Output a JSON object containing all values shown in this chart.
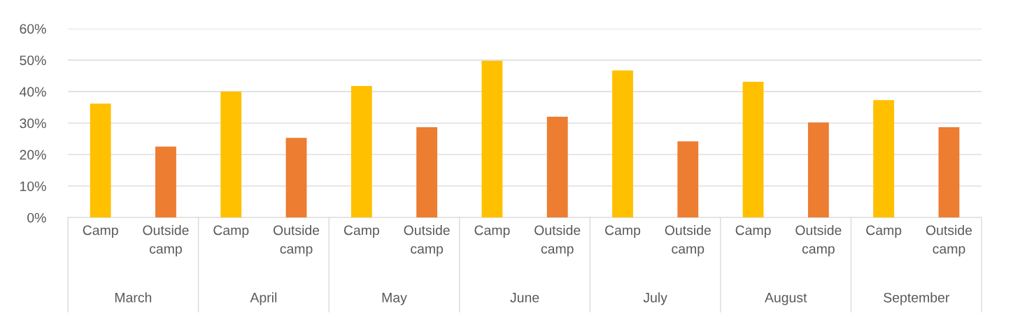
{
  "chart_data": {
    "type": "bar",
    "categories": [
      "March",
      "April",
      "May",
      "June",
      "July",
      "August",
      "September"
    ],
    "series": [
      {
        "name": "Camp",
        "color": "#ffc000",
        "values": [
          36.2,
          40,
          41.8,
          49.8,
          46.7,
          43.1,
          37.3
        ]
      },
      {
        "name": "Outside camp",
        "color": "#ed7d31",
        "values": [
          22.5,
          25.3,
          28.7,
          32,
          24.2,
          30.2,
          28.7
        ]
      }
    ],
    "ylim": [
      0,
      60
    ],
    "yticks": [
      {
        "value": 0,
        "label": "0%"
      },
      {
        "value": 10,
        "label": "10%"
      },
      {
        "value": 20,
        "label": "20%"
      },
      {
        "value": 30,
        "label": "30%"
      },
      {
        "value": 40,
        "label": "40%"
      },
      {
        "value": 50,
        "label": "50%"
      },
      {
        "value": 60,
        "label": "60%"
      }
    ],
    "grid": "y",
    "legend": false
  }
}
